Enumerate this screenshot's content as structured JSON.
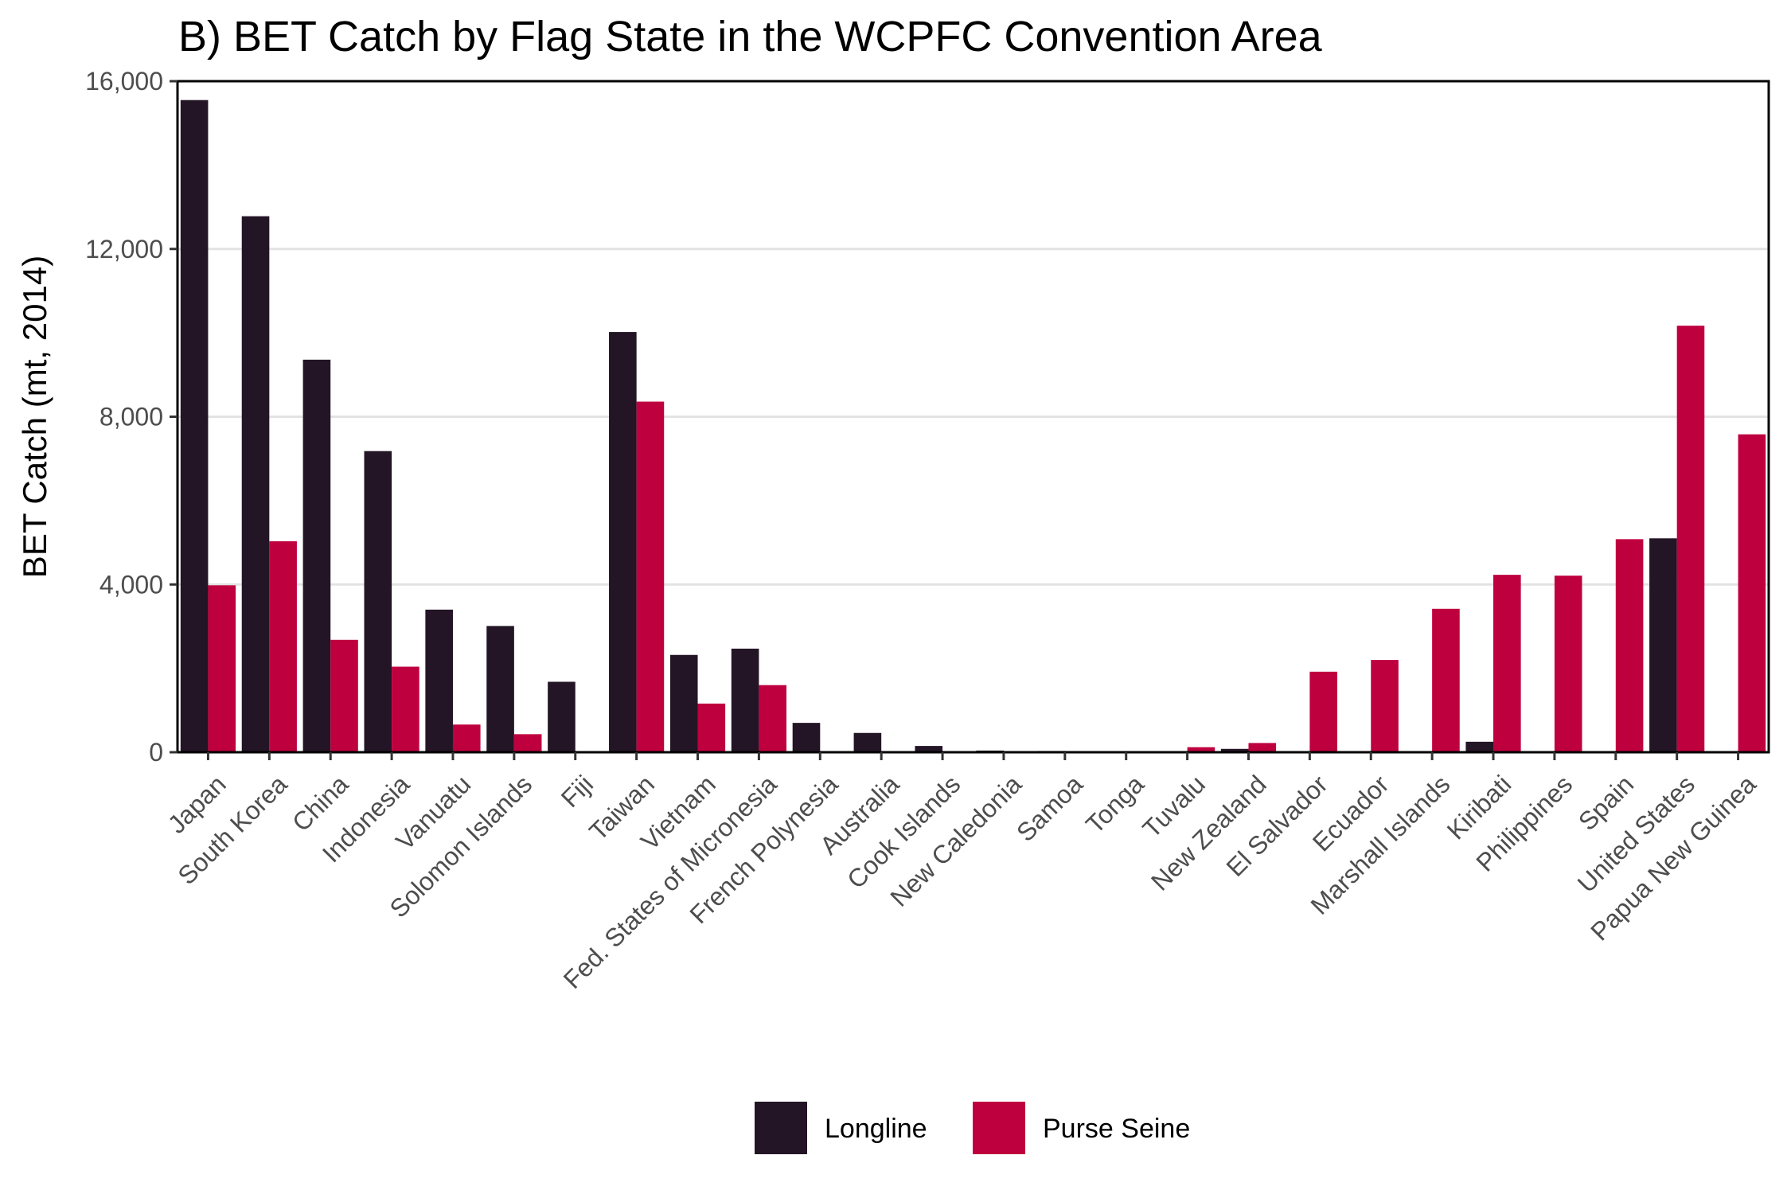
{
  "chart_data": {
    "type": "bar",
    "title": "B) BET Catch by Flag State in the WCPFC Convention Area",
    "xlabel": "",
    "ylabel": "BET Catch (mt, 2014)",
    "ylim": [
      0,
      16000
    ],
    "yticks": [
      0,
      4000,
      8000,
      12000,
      16000
    ],
    "ytick_labels": [
      "0",
      "4,000",
      "8,000",
      "12,000",
      "16,000"
    ],
    "grid": "horizontal major",
    "legend_position": "bottom",
    "categories": [
      "Japan",
      "South Korea",
      "China",
      "Indonesia",
      "Vanuatu",
      "Solomon Islands",
      "Fiji",
      "Taiwan",
      "Vietnam",
      "Fed. States of Micronesia",
      "French Polynesia",
      "Australia",
      "Cook Islands",
      "New Caledonia",
      "Samoa",
      "Tonga",
      "Tuvalu",
      "New Zealand",
      "El Salvador",
      "Ecuador",
      "Marshall Islands",
      "Kiribati",
      "Philippines",
      "Spain",
      "United States",
      "Papua New Guinea"
    ],
    "series": [
      {
        "name": "Longline",
        "color": "#231526",
        "values": [
          15550,
          12780,
          9360,
          7180,
          3400,
          3010,
          1680,
          10020,
          2320,
          2470,
          700,
          460,
          150,
          40,
          30,
          20,
          20,
          80,
          0,
          0,
          0,
          250,
          0,
          0,
          5100,
          0
        ]
      },
      {
        "name": "Purse Seine",
        "color": "#BF003F",
        "values": [
          3980,
          5030,
          2680,
          2040,
          660,
          430,
          0,
          8360,
          1160,
          1600,
          0,
          0,
          0,
          0,
          0,
          0,
          120,
          220,
          1920,
          2200,
          3420,
          4230,
          4210,
          5080,
          10170,
          7580
        ]
      }
    ]
  }
}
